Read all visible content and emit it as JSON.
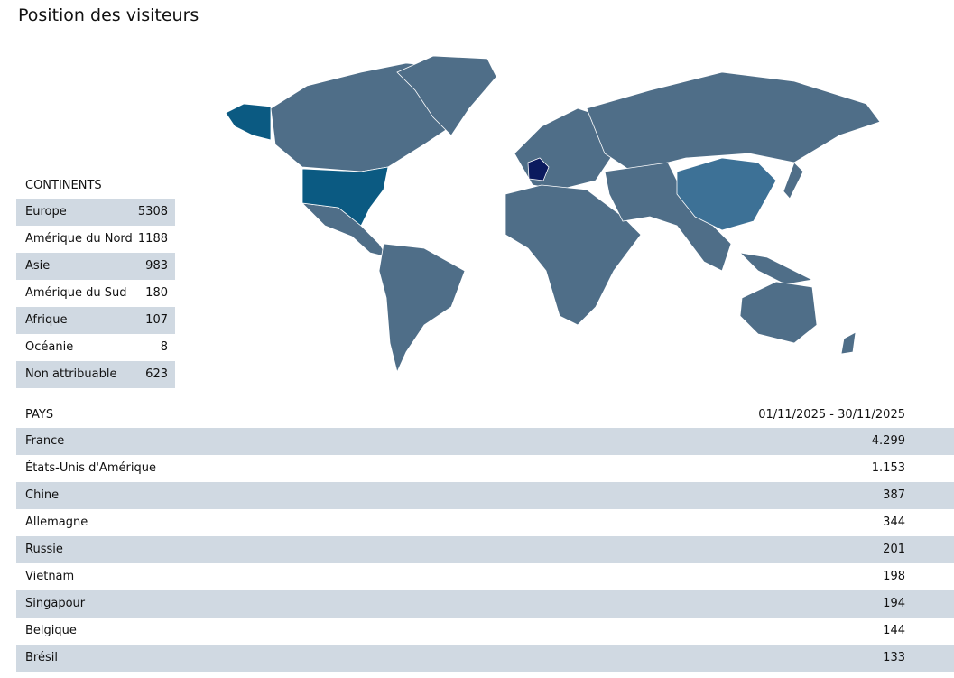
{
  "title": "Position des visiteurs",
  "colors": {
    "base": "#4f6e88",
    "usa": "#0b5a82",
    "france": "#0b1a5e",
    "china": "#3d7196",
    "row_alt": "#d0d9e2"
  },
  "continents": {
    "header": "CONTINENTS",
    "items": [
      {
        "label": "Europe",
        "value": "5308"
      },
      {
        "label": "Amérique du Nord",
        "value": "1188"
      },
      {
        "label": "Asie",
        "value": "983"
      },
      {
        "label": "Amérique du Sud",
        "value": "180"
      },
      {
        "label": "Afrique",
        "value": "107"
      },
      {
        "label": "Océanie",
        "value": "8"
      },
      {
        "label": "Non attribuable",
        "value": "623"
      }
    ]
  },
  "countries": {
    "header": "PAYS",
    "period": "01/11/2025 - 30/11/2025",
    "items": [
      {
        "label": "France",
        "value": "4.299"
      },
      {
        "label": "États-Unis d'Amérique",
        "value": "1.153"
      },
      {
        "label": "Chine",
        "value": "387"
      },
      {
        "label": "Allemagne",
        "value": "344"
      },
      {
        "label": "Russie",
        "value": "201"
      },
      {
        "label": "Vietnam",
        "value": "198"
      },
      {
        "label": "Singapour",
        "value": "194"
      },
      {
        "label": "Belgique",
        "value": "144"
      },
      {
        "label": "Brésil",
        "value": "133"
      }
    ]
  }
}
